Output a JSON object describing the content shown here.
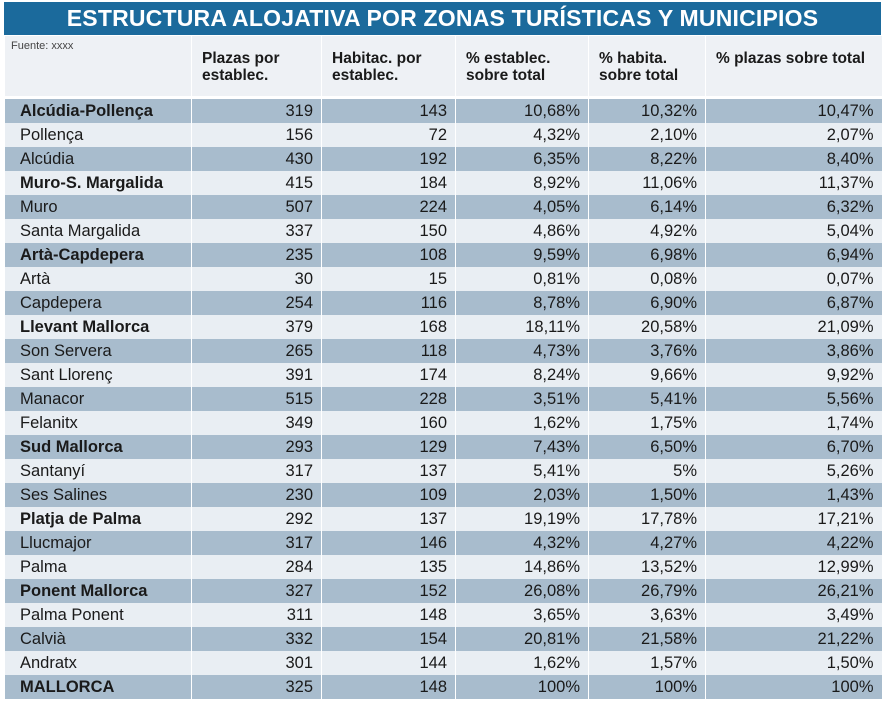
{
  "title": "ESTRUCTURA ALOJATIVA POR ZONAS TURÍSTICAS Y MUNICIPIOS",
  "source": "Fuente: xxxx",
  "headers": [
    "Plazas por establec.",
    "Habitac. por establec.",
    "% establec. sobre total",
    "% habita. sobre total",
    "% plazas sobre total"
  ],
  "rows": [
    {
      "name": "Alcúdia-Pollença",
      "bold": true,
      "values": [
        "319",
        "143",
        "10,68%",
        "10,32%",
        "10,47%"
      ]
    },
    {
      "name": "Pollença",
      "bold": false,
      "values": [
        "156",
        "72",
        "4,32%",
        "2,10%",
        "2,07%"
      ]
    },
    {
      "name": "Alcúdia",
      "bold": false,
      "values": [
        "430",
        "192",
        "6,35%",
        "8,22%",
        "8,40%"
      ]
    },
    {
      "name": "Muro-S. Margalida",
      "bold": true,
      "values": [
        "415",
        "184",
        "8,92%",
        "11,06%",
        "11,37%"
      ]
    },
    {
      "name": "Muro",
      "bold": false,
      "values": [
        "507",
        "224",
        "4,05%",
        "6,14%",
        "6,32%"
      ]
    },
    {
      "name": "Santa Margalida",
      "bold": false,
      "values": [
        "337",
        "150",
        "4,86%",
        "4,92%",
        "5,04%"
      ]
    },
    {
      "name": "Artà-Capdepera",
      "bold": true,
      "values": [
        "235",
        "108",
        "9,59%",
        "6,98%",
        "6,94%"
      ]
    },
    {
      "name": "Artà",
      "bold": false,
      "values": [
        "30",
        "15",
        "0,81%",
        "0,08%",
        "0,07%"
      ]
    },
    {
      "name": "Capdepera",
      "bold": false,
      "values": [
        "254",
        "116",
        "8,78%",
        "6,90%",
        "6,87%"
      ]
    },
    {
      "name": "Llevant Mallorca",
      "bold": true,
      "values": [
        "379",
        "168",
        "18,11%",
        "20,58%",
        "21,09%"
      ]
    },
    {
      "name": "Son Servera",
      "bold": false,
      "values": [
        "265",
        "118",
        "4,73%",
        "3,76%",
        "3,86%"
      ]
    },
    {
      "name": "Sant Llorenç",
      "bold": false,
      "values": [
        "391",
        "174",
        "8,24%",
        "9,66%",
        "9,92%"
      ]
    },
    {
      "name": "Manacor",
      "bold": false,
      "values": [
        "515",
        "228",
        "3,51%",
        "5,41%",
        "5,56%"
      ]
    },
    {
      "name": "Felanitx",
      "bold": false,
      "values": [
        "349",
        "160",
        "1,62%",
        "1,75%",
        "1,74%"
      ]
    },
    {
      "name": "Sud Mallorca",
      "bold": true,
      "values": [
        "293",
        "129",
        "7,43%",
        "6,50%",
        "6,70%"
      ]
    },
    {
      "name": "Santanyí",
      "bold": false,
      "values": [
        "317",
        "137",
        "5,41%",
        "5%",
        "5,26%"
      ]
    },
    {
      "name": "Ses Salines",
      "bold": false,
      "values": [
        "230",
        "109",
        "2,03%",
        "1,50%",
        "1,43%"
      ]
    },
    {
      "name": "Platja de Palma",
      "bold": true,
      "values": [
        "292",
        "137",
        "19,19%",
        "17,78%",
        "17,21%"
      ]
    },
    {
      "name": "Llucmajor",
      "bold": false,
      "values": [
        "317",
        "146",
        "4,32%",
        "4,27%",
        "4,22%"
      ]
    },
    {
      "name": "Palma",
      "bold": false,
      "values": [
        "284",
        "135",
        "14,86%",
        "13,52%",
        "12,99%"
      ]
    },
    {
      "name": "Ponent Mallorca",
      "bold": true,
      "values": [
        "327",
        "152",
        "26,08%",
        "26,79%",
        "26,21%"
      ]
    },
    {
      "name": "Palma Ponent",
      "bold": false,
      "values": [
        "311",
        "148",
        "3,65%",
        "3,63%",
        "3,49%"
      ]
    },
    {
      "name": "Calvià",
      "bold": false,
      "values": [
        "332",
        "154",
        "20,81%",
        "21,58%",
        "21,22%"
      ]
    },
    {
      "name": "Andratx",
      "bold": false,
      "values": [
        "301",
        "144",
        "1,62%",
        "1,57%",
        "1,50%"
      ]
    },
    {
      "name": "MALLORCA",
      "bold": true,
      "values": [
        "325",
        "148",
        "100%",
        "100%",
        "100%"
      ]
    }
  ],
  "colors": {
    "title_bg": "#1b6a9c",
    "row_dark": "#a8bccd",
    "row_light": "#e9eef3",
    "header_bg": "#eef1f5"
  }
}
